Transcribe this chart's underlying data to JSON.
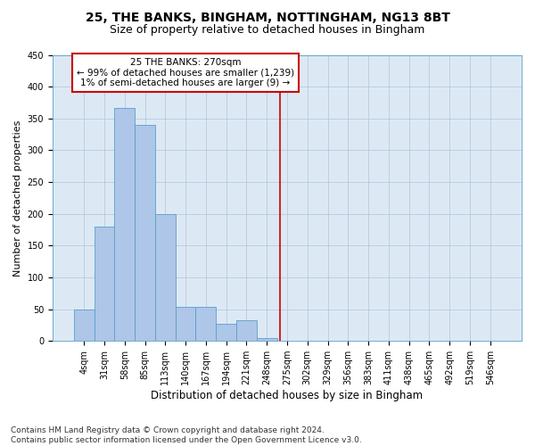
{
  "title1": "25, THE BANKS, BINGHAM, NOTTINGHAM, NG13 8BT",
  "title2": "Size of property relative to detached houses in Bingham",
  "xlabel": "Distribution of detached houses by size in Bingham",
  "ylabel": "Number of detached properties",
  "categories": [
    "4sqm",
    "31sqm",
    "58sqm",
    "85sqm",
    "113sqm",
    "140sqm",
    "167sqm",
    "194sqm",
    "221sqm",
    "248sqm",
    "275sqm",
    "302sqm",
    "329sqm",
    "356sqm",
    "383sqm",
    "411sqm",
    "438sqm",
    "465sqm",
    "492sqm",
    "519sqm",
    "546sqm"
  ],
  "values": [
    49,
    180,
    367,
    340,
    200,
    54,
    54,
    27,
    33,
    5,
    0,
    0,
    0,
    0,
    0,
    0,
    0,
    0,
    0,
    0,
    0
  ],
  "bar_color": "#aec6e8",
  "bar_edge_color": "#5a9fc8",
  "bar_width": 1.0,
  "vline_x": 9.67,
  "vline_color": "#cc0000",
  "annotation_text": "25 THE BANKS: 270sqm\n← 99% of detached houses are smaller (1,239)\n1% of semi-detached houses are larger (9) →",
  "annotation_box_color": "#cc0000",
  "ylim": [
    0,
    450
  ],
  "yticks": [
    0,
    50,
    100,
    150,
    200,
    250,
    300,
    350,
    400,
    450
  ],
  "grid_color": "#b0c4d8",
  "bg_color": "#dce9f5",
  "footer": "Contains HM Land Registry data © Crown copyright and database right 2024.\nContains public sector information licensed under the Open Government Licence v3.0.",
  "title1_fontsize": 10,
  "title2_fontsize": 9,
  "xlabel_fontsize": 8.5,
  "ylabel_fontsize": 8,
  "tick_fontsize": 7,
  "annot_fontsize": 7.5,
  "footer_fontsize": 6.5
}
